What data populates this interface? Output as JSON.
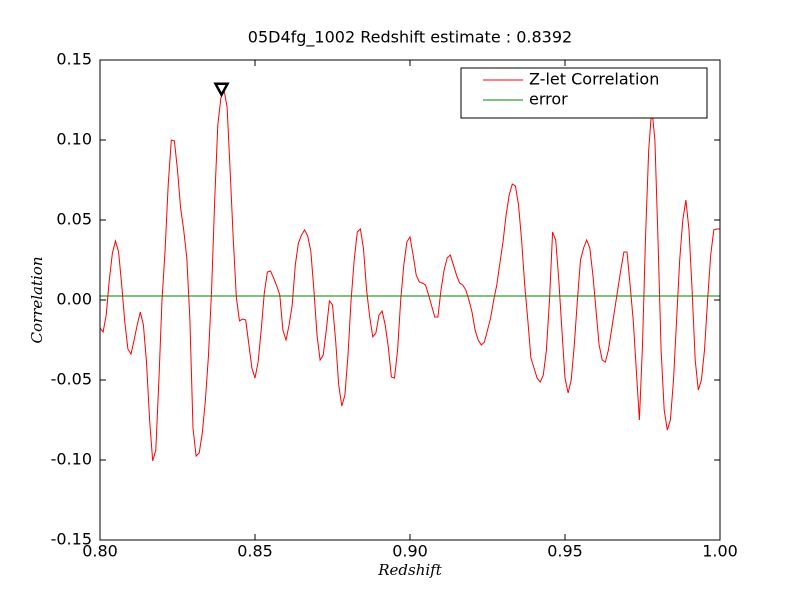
{
  "chart_data": {
    "type": "line",
    "title": "05D4fg_1002 Redshift estimate : 0.8392",
    "xlabel": "Redshift",
    "ylabel": "Correlation",
    "xlim": [
      0.8,
      1.0
    ],
    "ylim": [
      -0.15,
      0.15
    ],
    "xticks": [
      {
        "value": 0.8,
        "label": "0.80"
      },
      0.85,
      {
        "value": 0.9,
        "label": "0.90"
      },
      0.95,
      {
        "value": 1.0,
        "label": "1.00"
      }
    ],
    "yticks": [
      {
        "value": -0.15,
        "label": "-0.15"
      },
      {
        "value": -0.1,
        "label": "-0.10"
      },
      -0.05,
      {
        "value": 0,
        "label": "0.00"
      },
      0.05,
      {
        "value": 0.1,
        "label": "0.10"
      },
      0.15
    ],
    "legend": "upper right",
    "marker": {
      "x": 0.8392,
      "y": 0.132
    },
    "series": [
      {
        "name": "Z-let Correlation",
        "color": "#ff0000",
        "x": [
          0.8,
          0.801,
          0.802,
          0.803,
          0.804,
          0.805,
          0.806,
          0.807,
          0.808,
          0.809,
          0.81,
          0.811,
          0.812,
          0.813,
          0.814,
          0.815,
          0.816,
          0.817,
          0.818,
          0.819,
          0.82,
          0.821,
          0.822,
          0.823,
          0.824,
          0.825,
          0.826,
          0.827,
          0.828,
          0.829,
          0.83,
          0.831,
          0.832,
          0.833,
          0.834,
          0.835,
          0.836,
          0.837,
          0.838,
          0.839,
          0.84,
          0.841,
          0.842,
          0.843,
          0.844,
          0.845,
          0.846,
          0.847,
          0.848,
          0.849,
          0.85,
          0.851,
          0.852,
          0.853,
          0.854,
          0.855,
          0.856,
          0.857,
          0.858,
          0.859,
          0.86,
          0.861,
          0.862,
          0.863,
          0.864,
          0.865,
          0.866,
          0.867,
          0.868,
          0.869,
          0.87,
          0.871,
          0.872,
          0.873,
          0.874,
          0.875,
          0.876,
          0.877,
          0.878,
          0.879,
          0.88,
          0.881,
          0.882,
          0.883,
          0.884,
          0.885,
          0.886,
          0.887,
          0.888,
          0.889,
          0.89,
          0.891,
          0.892,
          0.893,
          0.894,
          0.895,
          0.896,
          0.897,
          0.898,
          0.899,
          0.9,
          0.901,
          0.902,
          0.903,
          0.904,
          0.905,
          0.906,
          0.907,
          0.908,
          0.909,
          0.91,
          0.911,
          0.912,
          0.913,
          0.914,
          0.915,
          0.916,
          0.917,
          0.918,
          0.919,
          0.92,
          0.921,
          0.922,
          0.923,
          0.924,
          0.925,
          0.926,
          0.927,
          0.928,
          0.929,
          0.93,
          0.931,
          0.932,
          0.933,
          0.934,
          0.935,
          0.936,
          0.937,
          0.938,
          0.939,
          0.94,
          0.941,
          0.942,
          0.943,
          0.944,
          0.945,
          0.946,
          0.947,
          0.948,
          0.949,
          0.95,
          0.951,
          0.952,
          0.953,
          0.954,
          0.955,
          0.956,
          0.957,
          0.958,
          0.959,
          0.96,
          0.961,
          0.962,
          0.963,
          0.964,
          0.965,
          0.966,
          0.967,
          0.968,
          0.969,
          0.97,
          0.971,
          0.972,
          0.973,
          0.974,
          0.975,
          0.976,
          0.977,
          0.978,
          0.979,
          0.98,
          0.981,
          0.982,
          0.983,
          0.984,
          0.985,
          0.986,
          0.987,
          0.988,
          0.989,
          0.99,
          0.991,
          0.992,
          0.993,
          0.994,
          0.995,
          0.996,
          0.997,
          0.998,
          0.999,
          1.0
        ],
        "values": [
          -0.0175,
          -0.02,
          -0.0094,
          0.0125,
          0.0294,
          0.0369,
          0.03,
          0.0094,
          -0.0138,
          -0.0306,
          -0.0338,
          -0.025,
          -0.0156,
          -0.0075,
          -0.0156,
          -0.0388,
          -0.075,
          -0.1006,
          -0.0938,
          -0.05,
          0,
          0.0313,
          0.0719,
          0.1,
          0.0994,
          0.0813,
          0.0575,
          0.0438,
          0.0263,
          -0.0125,
          -0.08,
          -0.0975,
          -0.0956,
          -0.0831,
          -0.0625,
          -0.0344,
          0.0063,
          0.0625,
          0.1094,
          0.1263,
          0.1313,
          0.1206,
          0.08,
          0.0375,
          0.0013,
          -0.0131,
          -0.0119,
          -0.0125,
          -0.0275,
          -0.0425,
          -0.0488,
          -0.0388,
          -0.0188,
          0.0044,
          0.0175,
          0.0181,
          0.0138,
          0.0088,
          0.0031,
          -0.0188,
          -0.025,
          -0.0156,
          -0.0031,
          0.0219,
          0.0356,
          0.0406,
          0.0438,
          0.04,
          0.0306,
          0.0063,
          -0.0219,
          -0.0375,
          -0.0344,
          -0.0188,
          -0.0006,
          -0.0031,
          -0.025,
          -0.0531,
          -0.0663,
          -0.0594,
          -0.0344,
          0,
          0.025,
          0.0425,
          0.0444,
          0.0319,
          0.0063,
          -0.0106,
          -0.0231,
          -0.0206,
          -0.0094,
          -0.0069,
          -0.0156,
          -0.0294,
          -0.0481,
          -0.0488,
          -0.0313,
          0,
          0.0219,
          0.0363,
          0.0394,
          0.0281,
          0.0156,
          0.0113,
          0.0106,
          0.0094,
          0.0031,
          -0.0038,
          -0.0106,
          -0.0106,
          0.0063,
          0.0188,
          0.0263,
          0.0281,
          0.0219,
          0.0156,
          0.0106,
          0.0094,
          0.0063,
          0,
          -0.0075,
          -0.0188,
          -0.025,
          -0.0281,
          -0.0263,
          -0.0188,
          -0.0113,
          0,
          0.0094,
          0.0231,
          0.0363,
          0.0531,
          0.0656,
          0.0725,
          0.0713,
          0.0594,
          0.0375,
          0.0094,
          -0.0125,
          -0.0363,
          -0.0425,
          -0.0488,
          -0.0513,
          -0.0469,
          -0.0313,
          0,
          0.0425,
          0.0375,
          0.0125,
          -0.0188,
          -0.0488,
          -0.0581,
          -0.05,
          -0.0281,
          0,
          0.025,
          0.0325,
          0.0375,
          0.0325,
          0.0156,
          -0.0063,
          -0.0281,
          -0.0375,
          -0.0388,
          -0.0313,
          -0.0188,
          -0.0063,
          0.0063,
          0.0188,
          0.03,
          0.03,
          0.0094,
          -0.0125,
          -0.0438,
          -0.075,
          -0.0281,
          0.0406,
          0.0938,
          0.12,
          0.1,
          0.0375,
          -0.0313,
          -0.0688,
          -0.0813,
          -0.075,
          -0.05,
          -0.0125,
          0.025,
          0.05,
          0.0625,
          0.0438,
          0.0063,
          -0.0375,
          -0.0563,
          -0.05,
          -0.0313,
          0,
          0.0281,
          0.0438,
          0.0444,
          0.0444
        ]
      },
      {
        "name": "error",
        "color": "#008000",
        "x": [
          0.8,
          1.0
        ],
        "values": [
          0.0025,
          0.0025
        ]
      }
    ]
  }
}
